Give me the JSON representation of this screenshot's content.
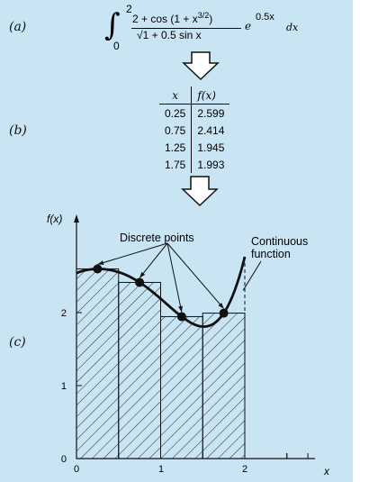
{
  "labels": {
    "a": "(a)",
    "b": "(b)",
    "c": "(c)"
  },
  "formula": {
    "upper_limit": "2",
    "lower_limit": "0",
    "numerator": "2 + cos (1 + x",
    "numerator_exp": "3/2",
    "numerator_close": ")",
    "denominator": "1 + 0.5 sin x",
    "exp_base": "e",
    "exponent": "0.5x",
    "differential": "dx"
  },
  "table": {
    "headers": [
      "x",
      "f(x)"
    ],
    "rows": [
      [
        "0.25",
        "2.599"
      ],
      [
        "0.75",
        "2.414"
      ],
      [
        "1.25",
        "1.945"
      ],
      [
        "1.75",
        "1.993"
      ]
    ]
  },
  "plot": {
    "ylabel": "f(x)",
    "xlabel": "x",
    "annotations": {
      "discrete": "Discrete points",
      "continuous_1": "Continuous",
      "continuous_2": "function"
    },
    "xticks": [
      "0",
      "1",
      "2"
    ],
    "yticks": [
      "0",
      "1",
      "2"
    ]
  },
  "colors": {
    "panel": "#c9e4f3",
    "ink": "#111111"
  }
}
